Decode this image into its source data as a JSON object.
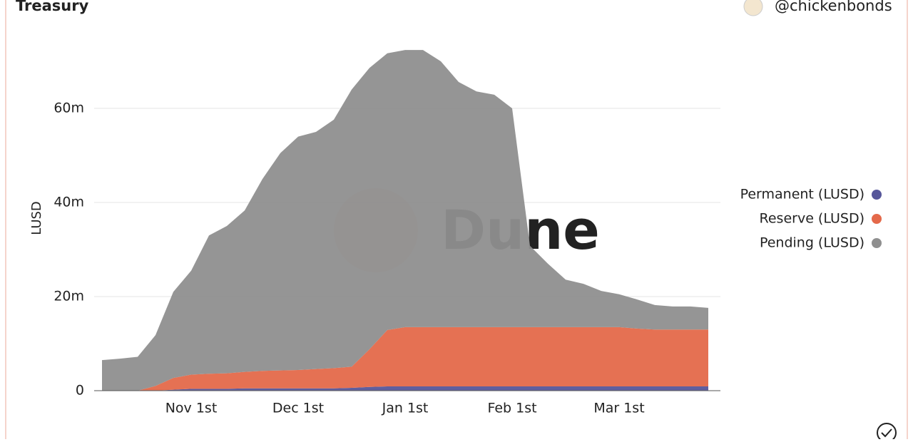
{
  "chart_data": {
    "type": "stacked_area",
    "title": "Treasury",
    "source": "@chickenbonds",
    "watermark": "Dune",
    "y_label": "LUSD",
    "categories": [
      null,
      null,
      null,
      null,
      null,
      "Nov 1st",
      null,
      null,
      null,
      null,
      null,
      "Dec 1st",
      null,
      null,
      null,
      null,
      null,
      "Jan 1st",
      null,
      null,
      null,
      null,
      null,
      "Feb 1st",
      null,
      null,
      null,
      null,
      null,
      "Mar 1st",
      null,
      null,
      null,
      null,
      null
    ],
    "series": [
      {
        "name": "Permanent (LUSD)",
        "color": "#56569a",
        "values": [
          0,
          0,
          0,
          0,
          0.2,
          0.4,
          0.4,
          0.4,
          0.5,
          0.5,
          0.5,
          0.5,
          0.5,
          0.5,
          0.6,
          0.8,
          0.9,
          0.9,
          0.9,
          0.9,
          0.9,
          0.9,
          0.9,
          0.9,
          0.9,
          0.9,
          0.9,
          0.9,
          0.9,
          0.9,
          0.9,
          0.9,
          0.9,
          0.9,
          0.9
        ]
      },
      {
        "name": "Reserve (LUSD)",
        "color": "#e4694a",
        "values": [
          0,
          0,
          0,
          1,
          2.5,
          3,
          3.2,
          3.3,
          3.5,
          3.7,
          3.8,
          3.9,
          4.1,
          4.3,
          4.5,
          8,
          12,
          12.6,
          12.6,
          12.6,
          12.6,
          12.6,
          12.6,
          12.6,
          12.6,
          12.6,
          12.6,
          12.6,
          12.6,
          12.6,
          12.3,
          12.1,
          12.1,
          12.1,
          12.1
        ]
      },
      {
        "name": "Pending (LUSD)",
        "color": "#8f8f8f",
        "values": [
          6.5,
          6.8,
          7.2,
          10.8,
          18.3,
          22.1,
          29.4,
          31.3,
          34.3,
          40.8,
          46.2,
          49.6,
          50.4,
          52.8,
          58.9,
          59.8,
          58.8,
          58.9,
          58.9,
          56.5,
          52.1,
          50.1,
          49.4,
          46.5,
          17.3,
          13.5,
          10.1,
          9.2,
          7.7,
          7.0,
          6.2,
          5.2,
          4.9,
          4.9,
          4.6
        ]
      }
    ],
    "ylim": [
      0,
      75
    ],
    "yticks": [
      0,
      {
        "value": 20,
        "label": "20m"
      },
      {
        "value": 40,
        "label": "40m"
      },
      {
        "value": 60,
        "label": "60m"
      }
    ],
    "grid": true,
    "legend": "right"
  }
}
